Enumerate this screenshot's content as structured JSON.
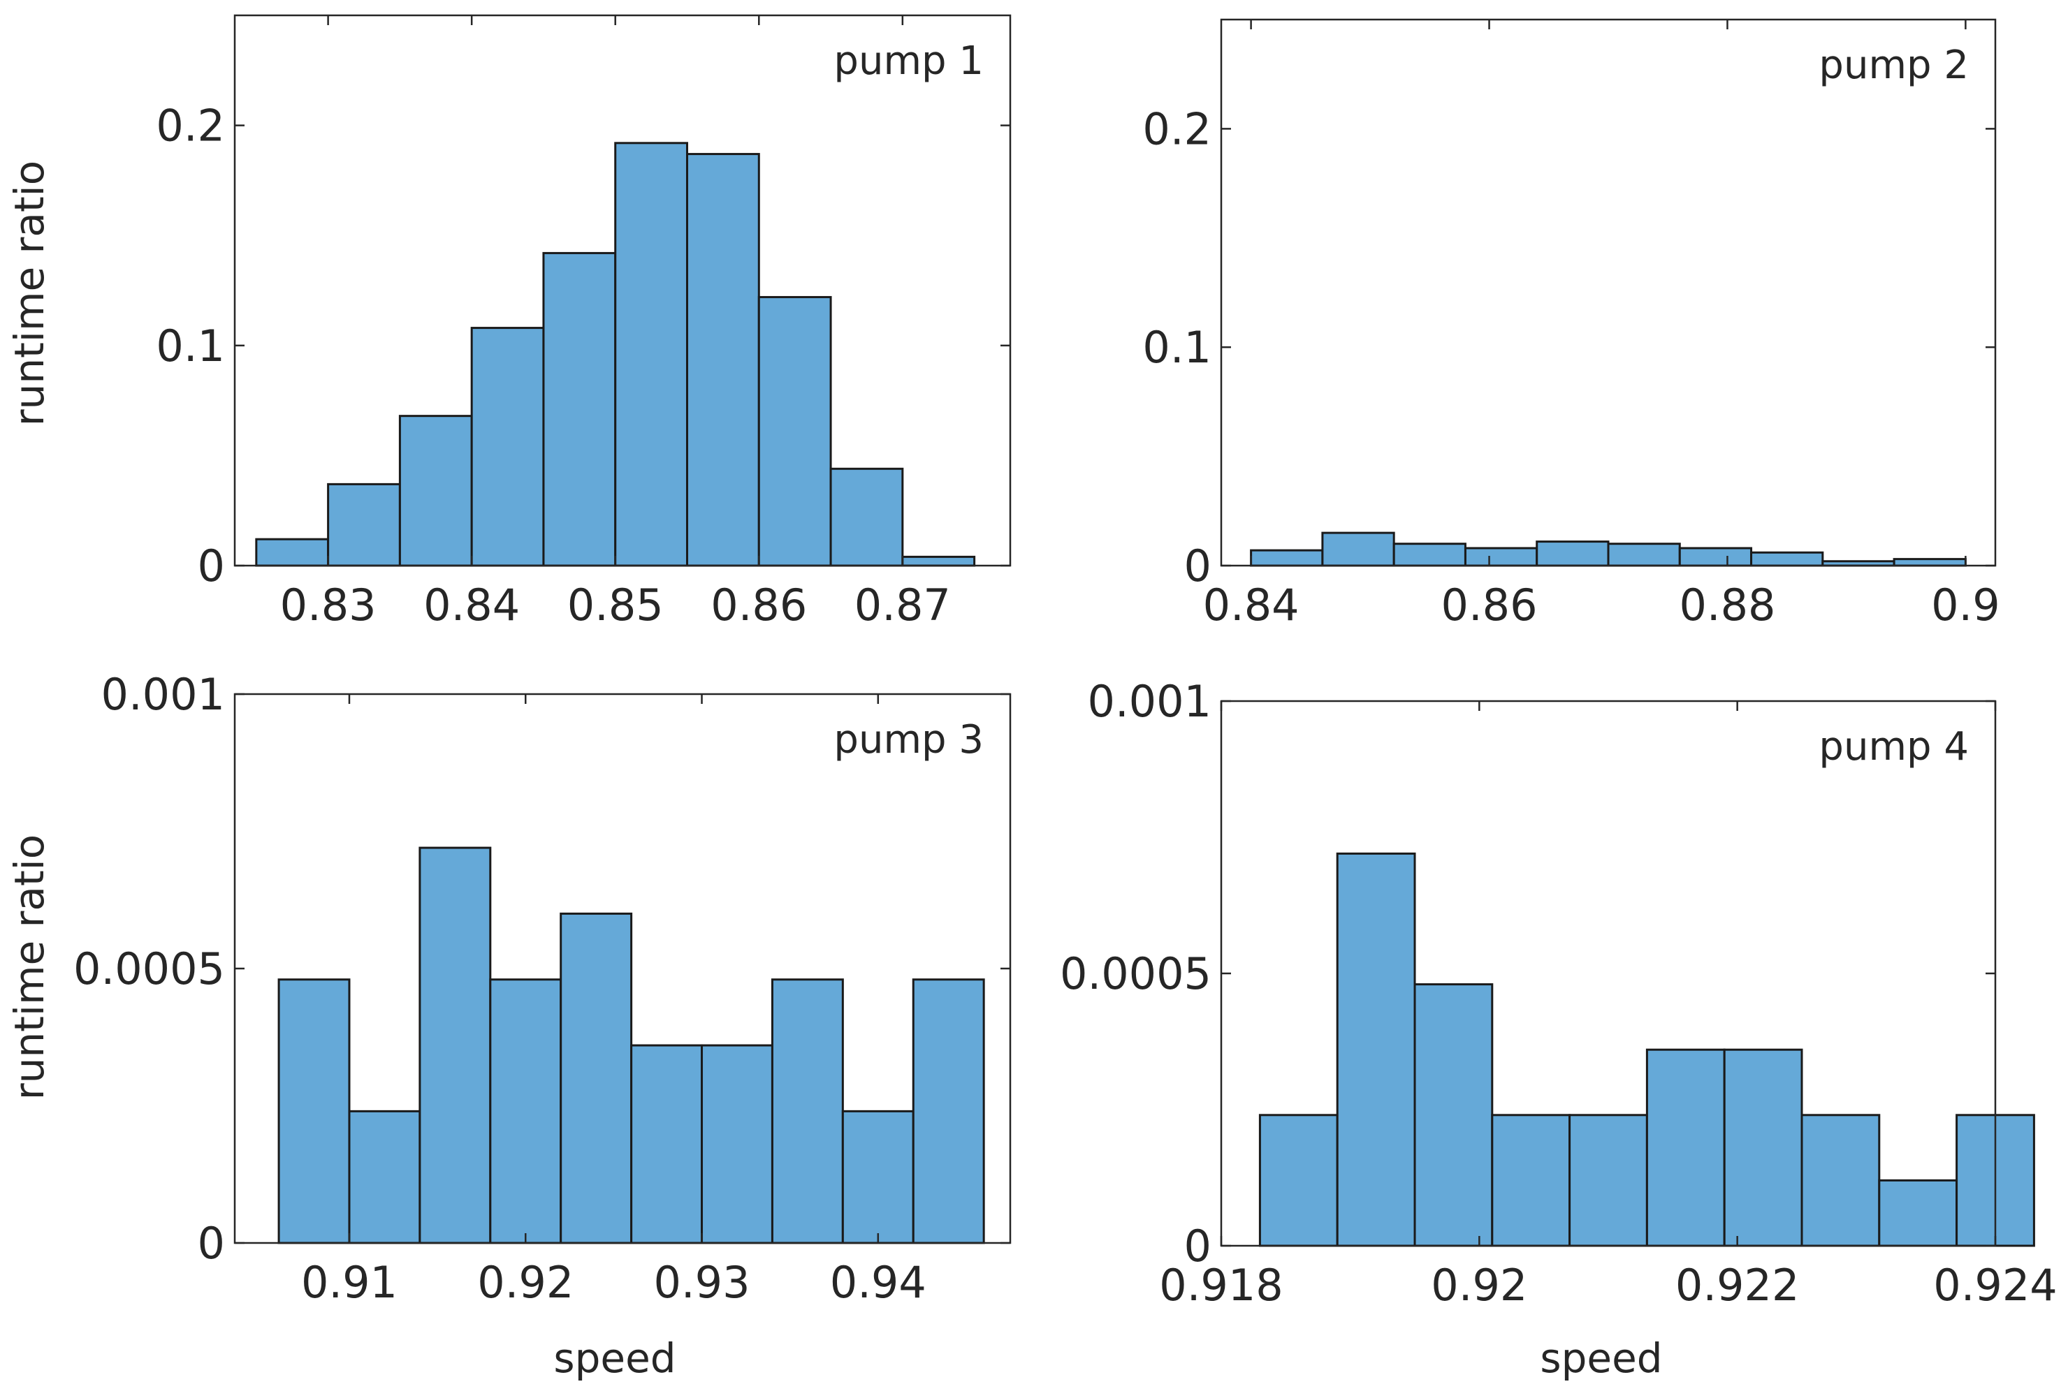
{
  "xlabel": "speed",
  "ylabel": "runtime ratio",
  "colors": {
    "bar_fill": "#65a9d8",
    "bar_edge": "#1a1a1a",
    "axis": "#262626"
  },
  "chart_data": [
    {
      "type": "bar",
      "label": "pump 1",
      "xlim": [
        0.8235,
        0.8775
      ],
      "ylim": [
        0,
        0.25
      ],
      "xticks": [
        0.83,
        0.84,
        0.85,
        0.86,
        0.87
      ],
      "xtick_labels": [
        "0.83",
        "0.84",
        "0.85",
        "0.86",
        "0.87"
      ],
      "yticks": [
        0,
        0.1,
        0.2
      ],
      "ytick_labels": [
        "0",
        "0.1",
        "0.2"
      ],
      "bin_edges": [
        0.825,
        0.83,
        0.835,
        0.84,
        0.845,
        0.85,
        0.855,
        0.86,
        0.865,
        0.87,
        0.875
      ],
      "values": [
        0.012,
        0.037,
        0.068,
        0.108,
        0.142,
        0.192,
        0.187,
        0.122,
        0.044,
        0.004
      ]
    },
    {
      "type": "bar",
      "label": "pump 2",
      "xlim": [
        0.8375,
        0.9025
      ],
      "ylim": [
        0,
        0.25
      ],
      "xticks": [
        0.84,
        0.86,
        0.88,
        0.9
      ],
      "xtick_labels": [
        "0.84",
        "0.86",
        "0.88",
        "0.9"
      ],
      "yticks": [
        0,
        0.1,
        0.2
      ],
      "ytick_labels": [
        "0",
        "0.1",
        "0.2"
      ],
      "bin_edges": [
        0.84,
        0.846,
        0.852,
        0.858,
        0.864,
        0.87,
        0.876,
        0.882,
        0.888,
        0.894,
        0.9
      ],
      "values": [
        0.007,
        0.015,
        0.01,
        0.008,
        0.011,
        0.01,
        0.008,
        0.006,
        0.002,
        0.003
      ]
    },
    {
      "type": "bar",
      "label": "pump 3",
      "xlim": [
        0.9035,
        0.9475
      ],
      "ylim": [
        0,
        0.001
      ],
      "xticks": [
        0.91,
        0.92,
        0.93,
        0.94
      ],
      "xtick_labels": [
        "0.91",
        "0.92",
        "0.93",
        "0.94"
      ],
      "yticks": [
        0,
        0.0005,
        0.001
      ],
      "ytick_labels": [
        "0",
        "0.0005",
        "0.001"
      ],
      "bin_edges": [
        0.906,
        0.91,
        0.914,
        0.918,
        0.922,
        0.926,
        0.93,
        0.934,
        0.938,
        0.942,
        0.946
      ],
      "values": [
        0.00048,
        0.00024,
        0.00072,
        0.00048,
        0.0006,
        0.00036,
        0.00036,
        0.00048,
        0.00024,
        0.00048
      ]
    },
    {
      "type": "bar",
      "label": "pump 4",
      "xlim": [
        0.918,
        0.924
      ],
      "ylim": [
        0,
        0.001
      ],
      "xticks": [
        0.918,
        0.92,
        0.922,
        0.924
      ],
      "xtick_labels": [
        "0.918",
        "0.92",
        "0.922",
        "0.924"
      ],
      "yticks": [
        0,
        0.0005,
        0.001
      ],
      "ytick_labels": [
        "0",
        "0.0005",
        "0.001"
      ],
      "bin_edges": [
        0.9183,
        0.9189,
        0.9195,
        0.9201,
        0.9207,
        0.9213,
        0.9219,
        0.9225,
        0.9231,
        0.9237,
        0.9243
      ],
      "values": [
        0.00024,
        0.00072,
        0.00048,
        0.00024,
        0.00024,
        0.00036,
        0.00036,
        0.00024,
        0.00012,
        0.00024
      ]
    }
  ]
}
